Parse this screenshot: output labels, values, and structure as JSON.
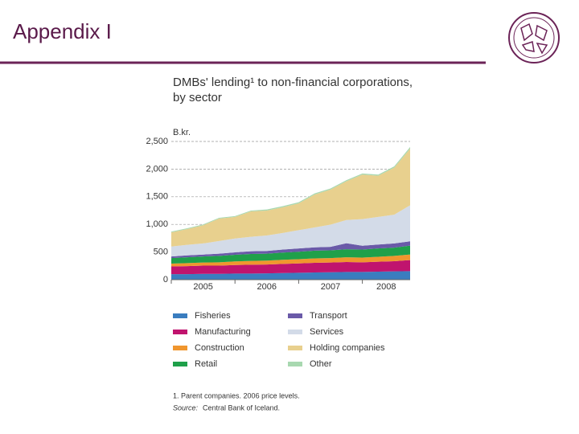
{
  "header": {
    "title": "Appendix I"
  },
  "chart_data": {
    "type": "stacked-area",
    "title": [
      "DMBs' lending¹ to non-financial corporations,",
      "by sector"
    ],
    "y_label": "B.kr.",
    "x": [
      2005.0,
      2005.25,
      2005.5,
      2005.75,
      2006.0,
      2006.25,
      2006.5,
      2006.75,
      2007.0,
      2007.25,
      2007.5,
      2007.75,
      2008.0,
      2008.25,
      2008.5,
      2008.75
    ],
    "xlim": [
      2005.0,
      2008.75
    ],
    "xticks": [
      2005,
      2006,
      2007,
      2008
    ],
    "ylim": [
      0,
      2500
    ],
    "yticks": [
      0,
      500,
      {
        "value": 1000,
        "label": "1,000"
      },
      {
        "value": 1500,
        "label": "1,500"
      },
      {
        "value": 2000,
        "label": "2,000"
      },
      {
        "value": 2500,
        "label": "2,500"
      }
    ],
    "grid": true,
    "series": [
      {
        "name": "Fisheries",
        "color": "#3a7dbf",
        "values": [
          100,
          100,
          105,
          105,
          110,
          110,
          115,
          120,
          125,
          130,
          135,
          140,
          140,
          145,
          150,
          155
        ]
      },
      {
        "name": "Manufacturing",
        "color": "#c0146e",
        "values": [
          140,
          145,
          150,
          150,
          155,
          160,
          160,
          165,
          170,
          175,
          175,
          180,
          175,
          180,
          185,
          200
        ]
      },
      {
        "name": "Construction",
        "color": "#f0962e",
        "values": [
          50,
          55,
          55,
          60,
          65,
          70,
          70,
          75,
          75,
          80,
          80,
          85,
          85,
          90,
          95,
          100
        ]
      },
      {
        "name": "Retail",
        "color": "#1fa04a",
        "values": [
          100,
          105,
          110,
          115,
          120,
          125,
          125,
          130,
          135,
          140,
          140,
          145,
          145,
          150,
          150,
          160
        ]
      },
      {
        "name": "Transport",
        "color": "#6a5aa8",
        "values": [
          30,
          35,
          35,
          40,
          45,
          50,
          50,
          55,
          60,
          60,
          65,
          110,
          70,
          70,
          75,
          80
        ]
      },
      {
        "name": "Services",
        "color": "#d3dbe8",
        "values": [
          180,
          190,
          200,
          230,
          250,
          260,
          280,
          300,
          330,
          360,
          400,
          420,
          480,
          500,
          520,
          650
        ]
      },
      {
        "name": "Holding companies",
        "color": "#e8d08e",
        "values": [
          255,
          285,
          330,
          405,
          390,
          460,
          450,
          465,
          485,
          595,
          635,
          700,
          805,
          745,
          850,
          1025
        ]
      },
      {
        "name": "Other",
        "color": "#a8d8b0",
        "values": [
          15,
          15,
          15,
          15,
          15,
          15,
          20,
          20,
          20,
          20,
          20,
          20,
          20,
          20,
          25,
          30
        ]
      }
    ],
    "note": "1. Parent companies. 2006 price levels.",
    "source_label": "Source:",
    "source": "Central Bank of Iceland."
  }
}
